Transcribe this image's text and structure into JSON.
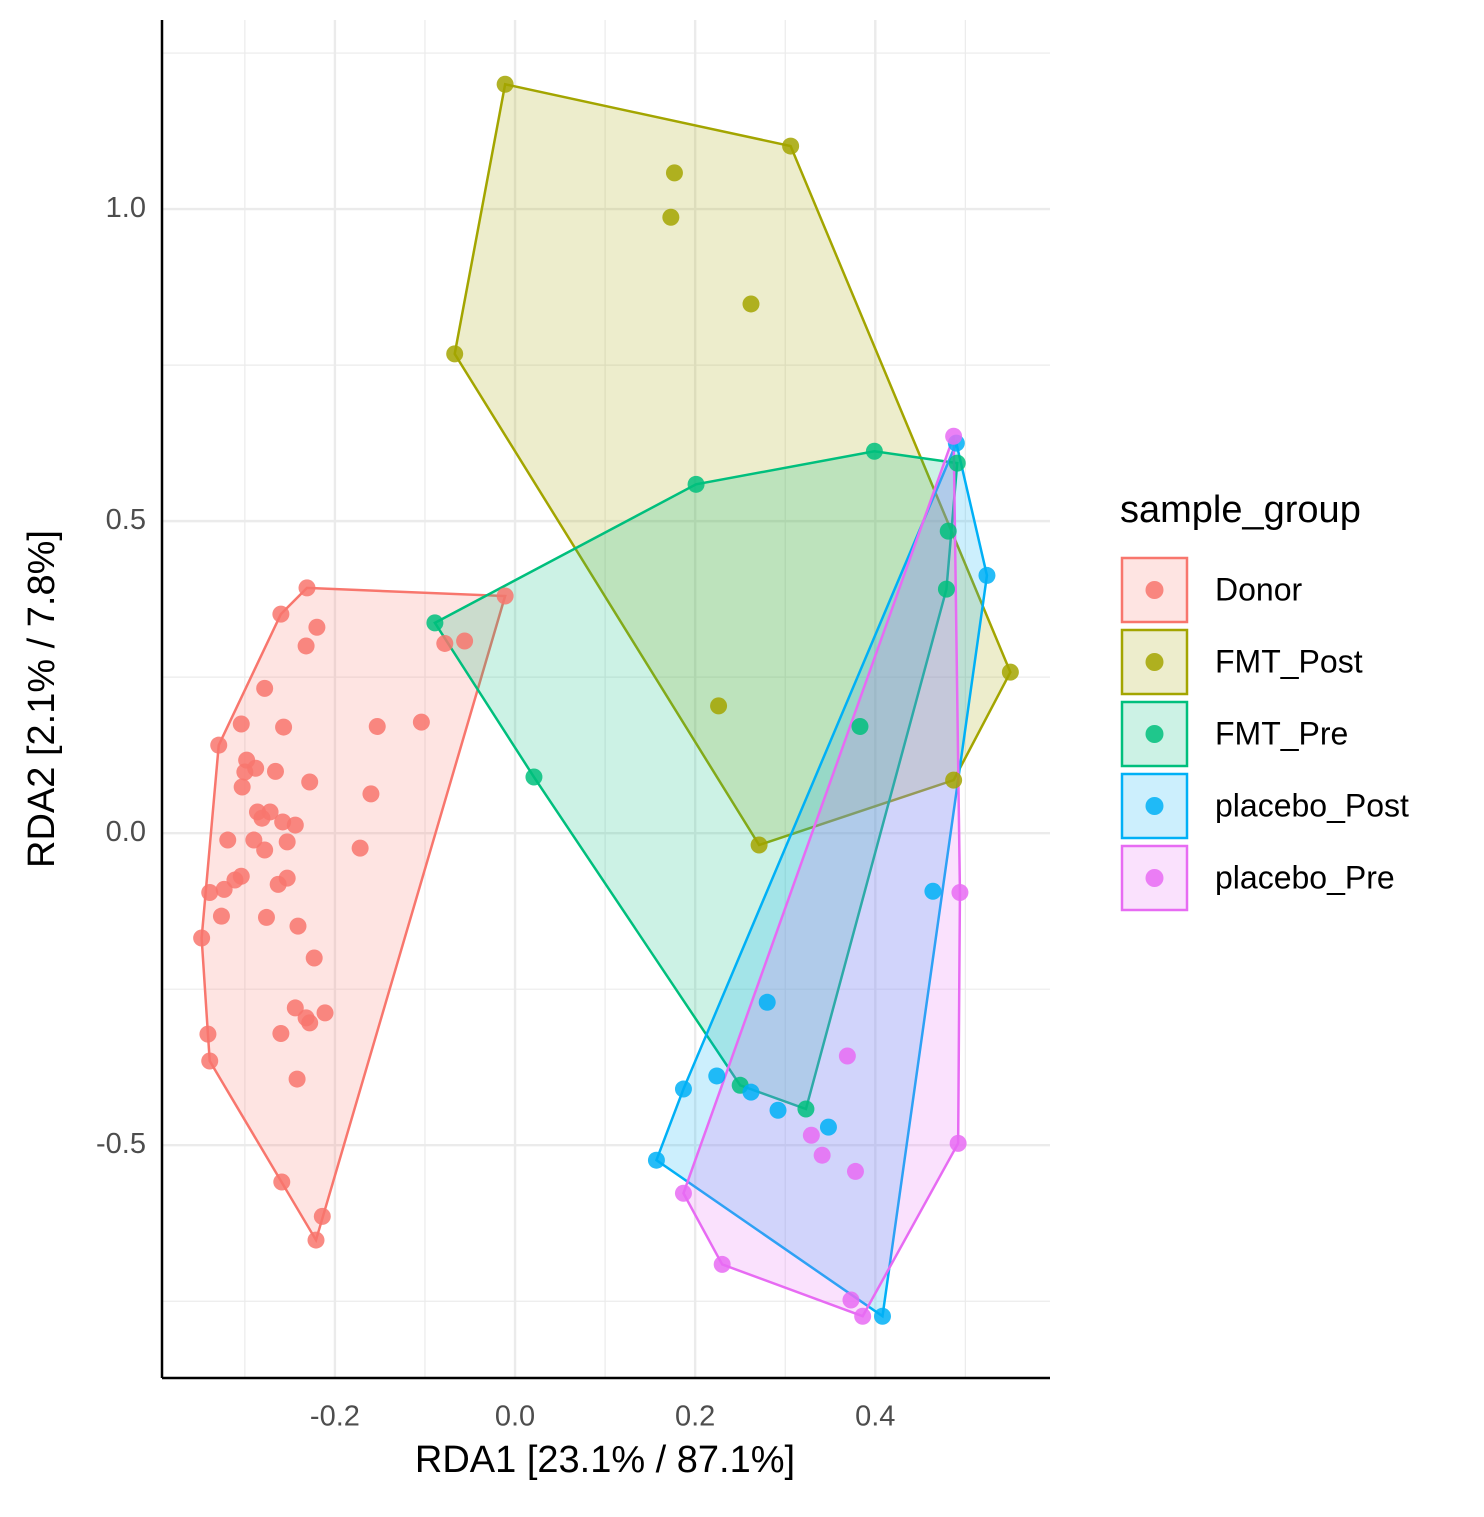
{
  "chart_data": {
    "type": "scatter",
    "xlabel": "RDA1 [23.1% / 87.1%]",
    "ylabel": "RDA2 [2.1% / 7.8%]",
    "legend_title": "sample_group",
    "legend": "right",
    "grid": true,
    "hulls": true,
    "xlim": [
      -0.392,
      0.594
    ],
    "ylim": [
      -0.873,
      1.303
    ],
    "xticks": [
      {
        "value": -0.2,
        "label": "-0.2"
      },
      {
        "value": 0,
        "label": "0.0"
      },
      0.2,
      0.4
    ],
    "yticks": [
      -0.5,
      {
        "value": 0,
        "label": "0.0"
      },
      0.5,
      {
        "value": 1,
        "label": "1.0"
      }
    ],
    "xminor": [
      -0.3,
      -0.1,
      0.1,
      0.3,
      0.5
    ],
    "yminor": [
      -0.75,
      -0.25,
      0.25,
      0.75,
      1.25
    ],
    "series": [
      {
        "name": "Donor",
        "color": "#F8766D",
        "x": [
          -0.231,
          -0.011,
          -0.26,
          -0.22,
          -0.232,
          -0.078,
          -0.056,
          -0.278,
          -0.304,
          -0.257,
          -0.153,
          -0.104,
          -0.329,
          -0.298,
          -0.3,
          -0.288,
          -0.266,
          -0.228,
          -0.303,
          -0.16,
          -0.286,
          -0.272,
          -0.281,
          -0.258,
          -0.244,
          -0.319,
          -0.29,
          -0.253,
          -0.278,
          -0.172,
          -0.304,
          -0.311,
          -0.253,
          -0.263,
          -0.339,
          -0.323,
          -0.326,
          -0.276,
          -0.241,
          -0.348,
          -0.223,
          -0.244,
          -0.211,
          -0.232,
          -0.228,
          -0.341,
          -0.26,
          -0.339,
          -0.242,
          -0.259,
          -0.214,
          -0.221
        ],
        "y": [
          0.393,
          0.38,
          0.351,
          0.33,
          0.3,
          0.304,
          0.308,
          0.232,
          0.175,
          0.17,
          0.171,
          0.178,
          0.141,
          0.117,
          0.098,
          0.104,
          0.099,
          0.082,
          0.074,
          0.063,
          0.034,
          0.034,
          0.024,
          0.018,
          0.013,
          -0.011,
          -0.011,
          -0.014,
          -0.027,
          -0.024,
          -0.069,
          -0.075,
          -0.072,
          -0.082,
          -0.095,
          -0.09,
          -0.133,
          -0.135,
          -0.149,
          -0.168,
          -0.2,
          -0.28,
          -0.288,
          -0.296,
          -0.304,
          -0.322,
          -0.321,
          -0.365,
          -0.394,
          -0.559,
          -0.614,
          -0.652
        ]
      },
      {
        "name": "FMT_Post",
        "color": "#A3A500",
        "x": [
          -0.011,
          0.306,
          0.177,
          0.173,
          0.262,
          -0.067,
          0.55,
          0.226,
          0.487,
          0.271
        ],
        "y": [
          1.2,
          1.101,
          1.058,
          0.987,
          0.848,
          0.768,
          0.258,
          0.204,
          0.085,
          -0.019
        ]
      },
      {
        "name": "FMT_Pre",
        "color": "#00BF7D",
        "x": [
          0.399,
          0.491,
          0.201,
          0.481,
          0.479,
          -0.089,
          0.383,
          0.021,
          0.25,
          0.323
        ],
        "y": [
          0.612,
          0.593,
          0.559,
          0.484,
          0.391,
          0.337,
          0.171,
          0.09,
          -0.404,
          -0.442
        ]
      },
      {
        "name": "placebo_Post",
        "color": "#00B0F6",
        "x": [
          0.49,
          0.524,
          0.464,
          0.28,
          0.224,
          0.187,
          0.262,
          0.292,
          0.348,
          0.157,
          0.408
        ],
        "y": [
          0.625,
          0.413,
          -0.093,
          -0.271,
          -0.389,
          -0.41,
          -0.415,
          -0.444,
          -0.471,
          -0.524,
          -0.774
        ]
      },
      {
        "name": "placebo_Pre",
        "color": "#E76BF3",
        "x": [
          0.487,
          0.494,
          0.369,
          0.329,
          0.341,
          0.378,
          0.492,
          0.187,
          0.23,
          0.373,
          0.386
        ],
        "y": [
          0.636,
          -0.095,
          -0.357,
          -0.484,
          -0.516,
          -0.542,
          -0.497,
          -0.577,
          -0.691,
          -0.748,
          -0.774
        ]
      }
    ]
  }
}
